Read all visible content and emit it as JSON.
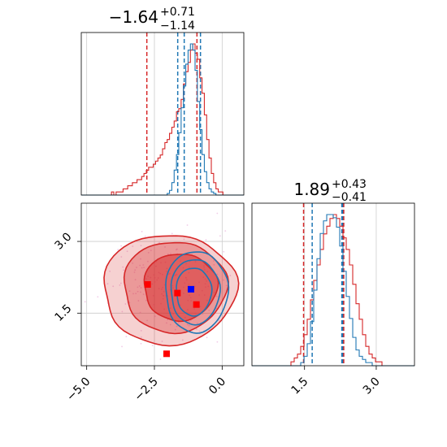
{
  "colors": {
    "red": "#d62728",
    "blue": "#1f77b4",
    "grid": "#cccccc",
    "marker_red": "#ff0000",
    "marker_blue": "#0000ff"
  },
  "chart_data": {
    "type": "corner",
    "grid": true,
    "params": [
      {
        "id": "p1",
        "title": {
          "median": "−1.64",
          "upper": "+0.71",
          "lower": "−1.14"
        },
        "range": [
          -5.2,
          0.8
        ],
        "ticks": [
          -5.0,
          -2.5,
          0.0
        ],
        "tick_labels": [
          "−5.0",
          "−2.5",
          "0.0"
        ],
        "quantiles": {
          "red": [
            -2.78,
            -0.93
          ],
          "blue": [
            -1.64,
            -1.4,
            -0.8
          ]
        },
        "hist_red": [
          0,
          0,
          0,
          0,
          0,
          0,
          0,
          0,
          0,
          0,
          0,
          0,
          0,
          1,
          0,
          1,
          1,
          1,
          2,
          2,
          3,
          3,
          4,
          4,
          5,
          5,
          6,
          7,
          8,
          9,
          9,
          10,
          11,
          12,
          13,
          15,
          17,
          18,
          20,
          22,
          24,
          27,
          28,
          31,
          36,
          40,
          43,
          47,
          49,
          46,
          44,
          38,
          33,
          26,
          18,
          12,
          7,
          4,
          2,
          1,
          1,
          0,
          0,
          0,
          0,
          0,
          0,
          0,
          0,
          0
        ],
        "hist_blue": [
          0,
          0,
          0,
          0,
          0,
          0,
          0,
          0,
          0,
          0,
          0,
          0,
          0,
          0,
          0,
          0,
          0,
          0,
          0,
          0,
          0,
          0,
          0,
          0,
          0,
          0,
          0,
          0,
          0,
          0,
          0,
          0,
          0,
          0,
          0,
          0,
          0,
          1,
          3,
          8,
          16,
          26,
          40,
          56,
          70,
          84,
          93,
          97,
          93,
          80,
          60,
          42,
          26,
          15,
          8,
          4,
          2,
          1,
          0,
          0,
          0,
          0,
          0,
          0,
          0,
          0,
          0,
          0,
          0,
          0
        ]
      },
      {
        "id": "p2",
        "title": {
          "median": "1.89",
          "upper": "+0.43",
          "lower": "−0.41"
        },
        "range": [
          0.4,
          3.8
        ],
        "ticks": [
          1.5,
          3.0
        ],
        "tick_labels": [
          "1.5",
          "3.0"
        ],
        "quantiles": {
          "red": [
            1.48,
            2.32
          ],
          "blue": [
            1.66,
            2.28,
            2.3
          ]
        },
        "hist_red": [
          0,
          0,
          0,
          0,
          0,
          0,
          0,
          0,
          0,
          0,
          0,
          0,
          1,
          2,
          3,
          5,
          8,
          12,
          17,
          22,
          26,
          30,
          34,
          36,
          38,
          39,
          38,
          36,
          33,
          30,
          26,
          21,
          16,
          12,
          8,
          5,
          3,
          2,
          1,
          1,
          0,
          0,
          0,
          0,
          0,
          0,
          0,
          0,
          0,
          0
        ],
        "hist_blue": [
          0,
          0,
          0,
          0,
          0,
          0,
          0,
          0,
          0,
          0,
          0,
          0,
          0,
          0,
          0,
          1,
          3,
          7,
          14,
          24,
          34,
          42,
          46,
          48,
          48,
          47,
          44,
          38,
          30,
          22,
          15,
          9,
          5,
          3,
          2,
          1,
          1,
          0,
          0,
          0,
          0,
          0,
          0,
          0,
          0,
          0,
          0,
          0,
          0,
          0
        ]
      }
    ],
    "joint": {
      "x_param": "p1",
      "y_param": "p2",
      "y_range": [
        0.4,
        3.8
      ],
      "y_ticks": [
        1.5,
        3.0
      ],
      "y_tick_labels": [
        "1.5",
        "3.0"
      ],
      "red_contours": [
        {
          "cx": -1.95,
          "cy": 2.0,
          "rx": 2.45,
          "ry": 1.15,
          "fill_opacity": 0.35
        },
        {
          "cx": -1.75,
          "cy": 2.05,
          "rx": 1.9,
          "ry": 0.95,
          "fill_opacity": 0.55
        },
        {
          "cx": -1.55,
          "cy": 2.05,
          "rx": 1.35,
          "ry": 0.7,
          "fill_opacity": 0.85
        }
      ],
      "blue_contours": [
        {
          "cx": -0.95,
          "cy": 1.95,
          "rx": 1.15,
          "ry": 0.85
        },
        {
          "cx": -1.0,
          "cy": 1.95,
          "rx": 0.9,
          "ry": 0.68
        },
        {
          "cx": -1.05,
          "cy": 1.95,
          "rx": 0.65,
          "ry": 0.5
        }
      ],
      "markers_red": [
        {
          "x": -2.75,
          "y": 2.1
        },
        {
          "x": -1.65,
          "y": 1.92
        },
        {
          "x": -0.95,
          "y": 1.68
        },
        {
          "x": -2.05,
          "y": 0.65
        }
      ],
      "markers_blue": [
        {
          "x": -1.15,
          "y": 2.0
        }
      ]
    }
  }
}
